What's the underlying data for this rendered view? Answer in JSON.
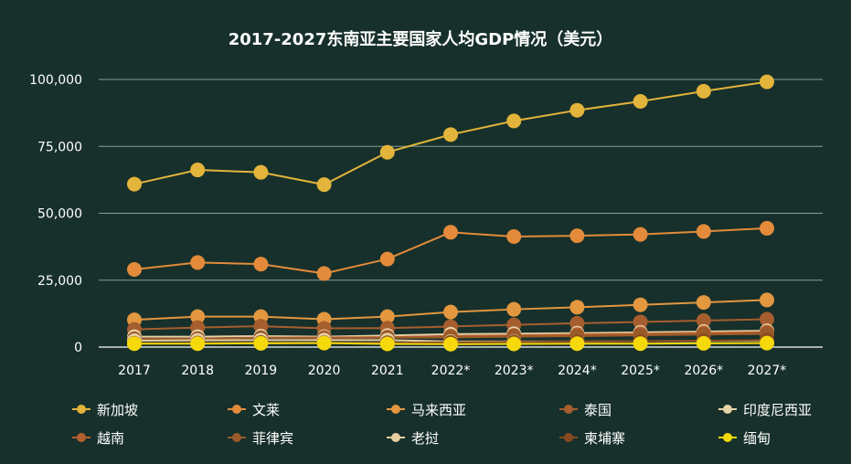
{
  "colors": {
    "background": "#17302b",
    "grid": "#8a9a94",
    "text": "#ffffff"
  },
  "chart_data": {
    "type": "line",
    "title": "2017-2027东南亚主要国家人均GDP情况（美元）",
    "xlabel": "",
    "ylabel": "",
    "ylim": [
      0,
      100000
    ],
    "yticks": [
      0,
      25000,
      50000,
      75000,
      100000
    ],
    "ytick_labels": [
      "0",
      "25,000",
      "50,000",
      "75,000",
      "100,000"
    ],
    "categories": [
      "2017",
      "2018",
      "2019",
      "2020",
      "2021",
      "2022*",
      "2023*",
      "2024*",
      "2025*",
      "2026*",
      "2027*"
    ],
    "grid": true,
    "legend_position": "bottom",
    "series": [
      {
        "name": "新加坡",
        "color": "#e3b43b",
        "values": [
          60900,
          66200,
          65300,
          60700,
          72800,
          79400,
          84500,
          88500,
          91800,
          95600,
          99100
        ]
      },
      {
        "name": "文莱",
        "color": "#e38b3b",
        "values": [
          29000,
          31600,
          31000,
          27500,
          32900,
          42900,
          41300,
          41600,
          42100,
          43200,
          44400
        ]
      },
      {
        "name": "马来西亚",
        "color": "#e3973f",
        "values": [
          10200,
          11400,
          11400,
          10400,
          11400,
          13100,
          14100,
          14900,
          15800,
          16700,
          17600
        ]
      },
      {
        "name": "泰国",
        "color": "#a65e2e",
        "values": [
          6600,
          7300,
          7800,
          7000,
          7100,
          7700,
          8300,
          8900,
          9400,
          9900,
          10400
        ]
      },
      {
        "name": "印度尼西亚",
        "color": "#e8d3a8",
        "values": [
          3900,
          3900,
          4100,
          3900,
          4300,
          4800,
          5000,
          5200,
          5500,
          5800,
          6100
        ]
      },
      {
        "name": "越南",
        "color": "#b55f2e",
        "values": [
          2600,
          2800,
          3500,
          3600,
          3700,
          4100,
          4400,
          4700,
          5000,
          5300,
          5600
        ]
      },
      {
        "name": "菲律宾",
        "color": "#9a5a2a",
        "values": [
          3100,
          3200,
          3500,
          3300,
          3500,
          3600,
          3900,
          4100,
          4400,
          4700,
          4900
        ]
      },
      {
        "name": "老挝",
        "color": "#e6cfa0",
        "values": [
          2400,
          2500,
          2600,
          2600,
          2600,
          2100,
          2100,
          2100,
          2200,
          2300,
          2400
        ]
      },
      {
        "name": "柬埔寨",
        "color": "#8a4a20",
        "values": [
          1400,
          1500,
          1700,
          1600,
          1600,
          1800,
          1900,
          2100,
          2200,
          2400,
          2600
        ]
      },
      {
        "name": "缅甸",
        "color": "#f5d90a",
        "values": [
          1300,
          1300,
          1400,
          1500,
          1200,
          1100,
          1200,
          1300,
          1300,
          1400,
          1500
        ]
      }
    ]
  }
}
